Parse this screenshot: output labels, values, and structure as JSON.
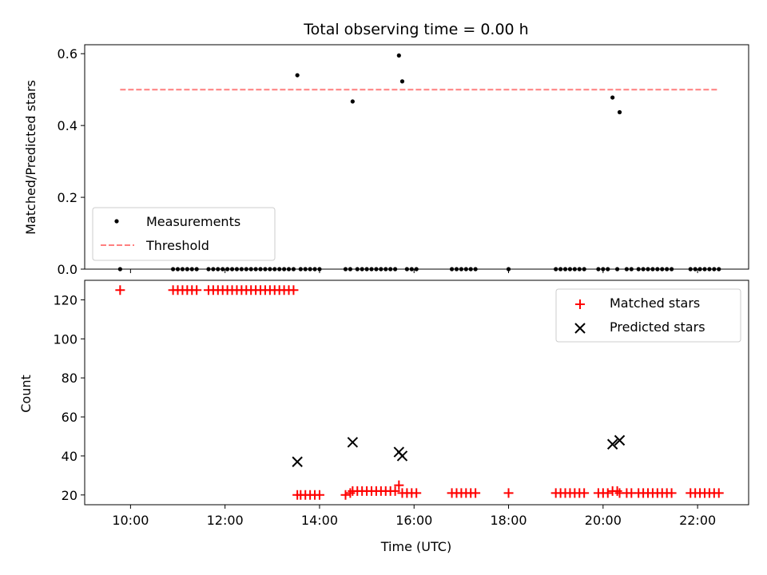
{
  "chart_data": [
    {
      "type": "scatter",
      "title": "Total observing time = 0.00 h",
      "ylabel": "Matched/Predicted stars",
      "xlabel": "",
      "ylim": [
        0,
        0.625
      ],
      "yticks": [
        0.0,
        0.2,
        0.4,
        0.6
      ],
      "yticks_labels": [
        "0.0",
        "0.2",
        "0.4",
        "0.6"
      ],
      "xlim": [
        9.03,
        23.08
      ],
      "xticks": [
        10,
        12,
        14,
        16,
        18,
        20,
        22
      ],
      "legend": "lower-left",
      "series": [
        {
          "name": "Measurements",
          "marker": "dot",
          "color": "#000000",
          "x": [
            9.78,
            10.9,
            11.0,
            11.1,
            11.2,
            11.3,
            11.4,
            11.65,
            11.75,
            11.85,
            11.95,
            12.05,
            12.15,
            12.25,
            12.35,
            12.45,
            12.55,
            12.65,
            12.75,
            12.85,
            12.95,
            13.05,
            13.15,
            13.25,
            13.35,
            13.45,
            13.53,
            13.6,
            13.7,
            13.8,
            13.9,
            14.0,
            14.55,
            14.65,
            14.7,
            14.8,
            14.9,
            15.0,
            15.1,
            15.2,
            15.3,
            15.4,
            15.5,
            15.6,
            15.68,
            15.75,
            15.85,
            15.95,
            16.05,
            16.8,
            16.9,
            17.0,
            17.1,
            17.2,
            17.3,
            18.0,
            19.0,
            19.1,
            19.2,
            19.3,
            19.4,
            19.5,
            19.6,
            19.9,
            20.0,
            20.1,
            20.2,
            20.3,
            20.35,
            20.5,
            20.6,
            20.75,
            20.85,
            20.95,
            21.05,
            21.15,
            21.25,
            21.35,
            21.45,
            21.85,
            21.95,
            22.05,
            22.15,
            22.25,
            22.35,
            22.45
          ],
          "y": [
            0,
            0,
            0,
            0,
            0,
            0,
            0,
            0,
            0,
            0,
            0,
            0,
            0,
            0,
            0,
            0,
            0,
            0,
            0,
            0,
            0,
            0,
            0,
            0,
            0,
            0,
            0.54,
            0,
            0,
            0,
            0,
            0,
            0,
            0,
            0.467,
            0,
            0,
            0,
            0,
            0,
            0,
            0,
            0,
            0,
            0.595,
            0.523,
            0,
            0,
            0,
            0,
            0,
            0,
            0,
            0,
            0,
            0,
            0,
            0,
            0,
            0,
            0,
            0,
            0,
            0,
            0,
            0,
            0.478,
            0,
            0.437,
            0,
            0,
            0,
            0,
            0,
            0,
            0,
            0,
            0,
            0,
            0,
            0,
            0,
            0,
            0,
            0,
            0
          ]
        },
        {
          "name": "Threshold",
          "marker": "dashed-line",
          "color": "#ff7f7f",
          "x": [
            9.78,
            22.45
          ],
          "y": [
            0.5,
            0.5
          ]
        }
      ]
    },
    {
      "type": "scatter",
      "title": "",
      "ylabel": "Count",
      "xlabel": "Time (UTC)",
      "ylim": [
        15,
        130
      ],
      "yticks": [
        20,
        40,
        60,
        80,
        100,
        120
      ],
      "xlim": [
        9.03,
        23.08
      ],
      "xticks": [
        10,
        12,
        14,
        16,
        18,
        20,
        22
      ],
      "xtick_labels": [
        "10:00",
        "12:00",
        "14:00",
        "16:00",
        "18:00",
        "20:00",
        "22:00"
      ],
      "legend": "top-right",
      "series": [
        {
          "name": "Matched stars",
          "marker": "plus",
          "color": "#ff0000",
          "x": [
            9.78,
            10.9,
            11.0,
            11.1,
            11.2,
            11.3,
            11.4,
            11.65,
            11.75,
            11.85,
            11.95,
            12.05,
            12.15,
            12.25,
            12.35,
            12.45,
            12.55,
            12.65,
            12.75,
            12.85,
            12.95,
            13.05,
            13.15,
            13.25,
            13.35,
            13.45,
            13.53,
            13.6,
            13.7,
            13.8,
            13.9,
            14.0,
            14.55,
            14.65,
            14.7,
            14.8,
            14.9,
            15.0,
            15.1,
            15.2,
            15.3,
            15.4,
            15.5,
            15.6,
            15.68,
            15.75,
            15.85,
            15.95,
            16.05,
            16.8,
            16.9,
            17.0,
            17.1,
            17.2,
            17.3,
            18.0,
            19.0,
            19.1,
            19.2,
            19.3,
            19.4,
            19.5,
            19.6,
            19.9,
            20.0,
            20.1,
            20.2,
            20.3,
            20.35,
            20.5,
            20.6,
            20.75,
            20.85,
            20.95,
            21.05,
            21.15,
            21.25,
            21.35,
            21.45,
            21.85,
            21.95,
            22.05,
            22.15,
            22.25,
            22.35,
            22.45
          ],
          "y": [
            125,
            125,
            125,
            125,
            125,
            125,
            125,
            125,
            125,
            125,
            125,
            125,
            125,
            125,
            125,
            125,
            125,
            125,
            125,
            125,
            125,
            125,
            125,
            125,
            125,
            125,
            20,
            20,
            20,
            20,
            20,
            20,
            20,
            21,
            22,
            22,
            22,
            22,
            22,
            22,
            22,
            22,
            22,
            22,
            25,
            21,
            21,
            21,
            21,
            21,
            21,
            21,
            21,
            21,
            21,
            21,
            21,
            21,
            21,
            21,
            21,
            21,
            21,
            21,
            21,
            21,
            22,
            22,
            21,
            21,
            21,
            21,
            21,
            21,
            21,
            21,
            21,
            21,
            21,
            21,
            21,
            21,
            21,
            21,
            21,
            21
          ]
        },
        {
          "name": "Predicted stars",
          "marker": "cross",
          "color": "#000000",
          "x": [
            13.53,
            14.7,
            15.68,
            15.75,
            20.2,
            20.35
          ],
          "y": [
            37,
            47,
            42,
            40,
            46,
            48
          ]
        }
      ]
    }
  ]
}
